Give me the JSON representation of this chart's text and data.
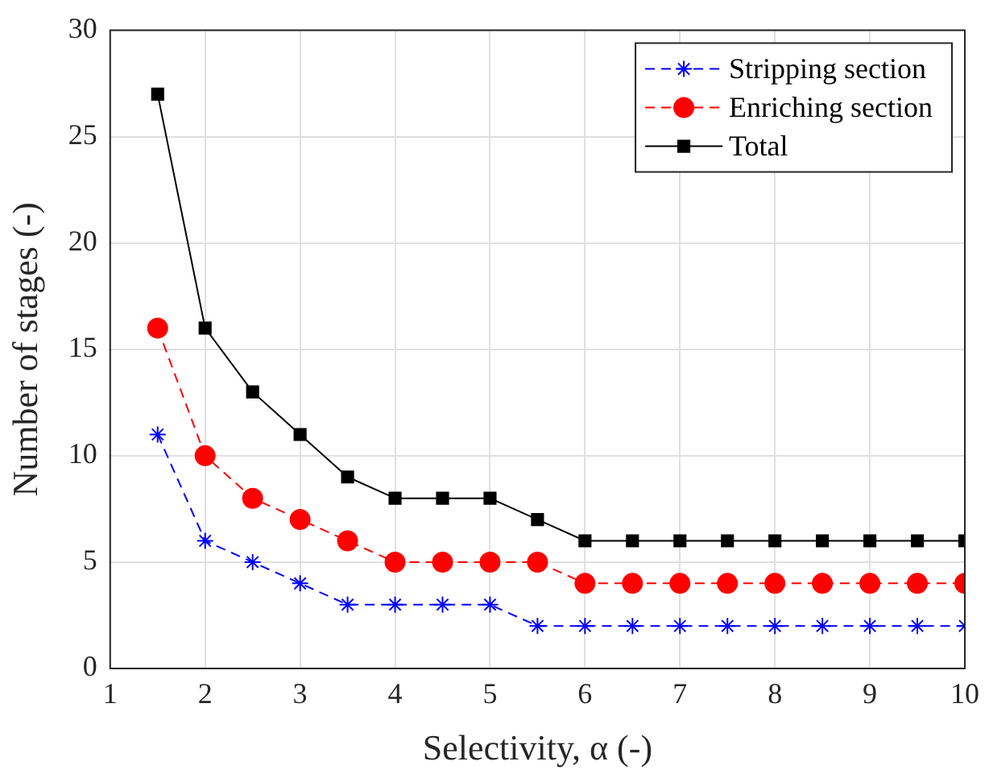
{
  "chart_data": {
    "type": "line",
    "xlabel": "Selectivity, α (-)",
    "ylabel": "Number of stages (-)",
    "x": [
      1.5,
      2,
      2.5,
      3,
      3.5,
      4,
      4.5,
      5,
      5.5,
      6,
      6.5,
      7,
      7.5,
      8,
      8.5,
      9,
      9.5,
      10
    ],
    "series": [
      {
        "name": "Stripping section",
        "color": "#0000ff",
        "marker": "cross",
        "line_style": "dashed",
        "values": [
          11,
          6,
          5,
          4,
          3,
          3,
          3,
          3,
          2,
          2,
          2,
          2,
          2,
          2,
          2,
          2,
          2,
          2
        ]
      },
      {
        "name": "Enriching section",
        "color": "#ff0000",
        "marker": "circle",
        "line_style": "dashed",
        "values": [
          16,
          10,
          8,
          7,
          6,
          5,
          5,
          5,
          5,
          4,
          4,
          4,
          4,
          4,
          4,
          4,
          4,
          4
        ]
      },
      {
        "name": "Total",
        "color": "#000000",
        "marker": "square",
        "line_style": "solid",
        "values": [
          27,
          16,
          13,
          11,
          9,
          8,
          8,
          8,
          7,
          6,
          6,
          6,
          6,
          6,
          6,
          6,
          6,
          6
        ]
      }
    ],
    "xlim": [
      1,
      10
    ],
    "xticks": [
      1,
      2,
      3,
      4,
      5,
      6,
      7,
      8,
      9,
      10
    ],
    "ylim": [
      0,
      30
    ],
    "yticks": [
      0,
      5,
      10,
      15,
      20,
      25,
      30
    ],
    "grid": true,
    "legend": "top right"
  }
}
